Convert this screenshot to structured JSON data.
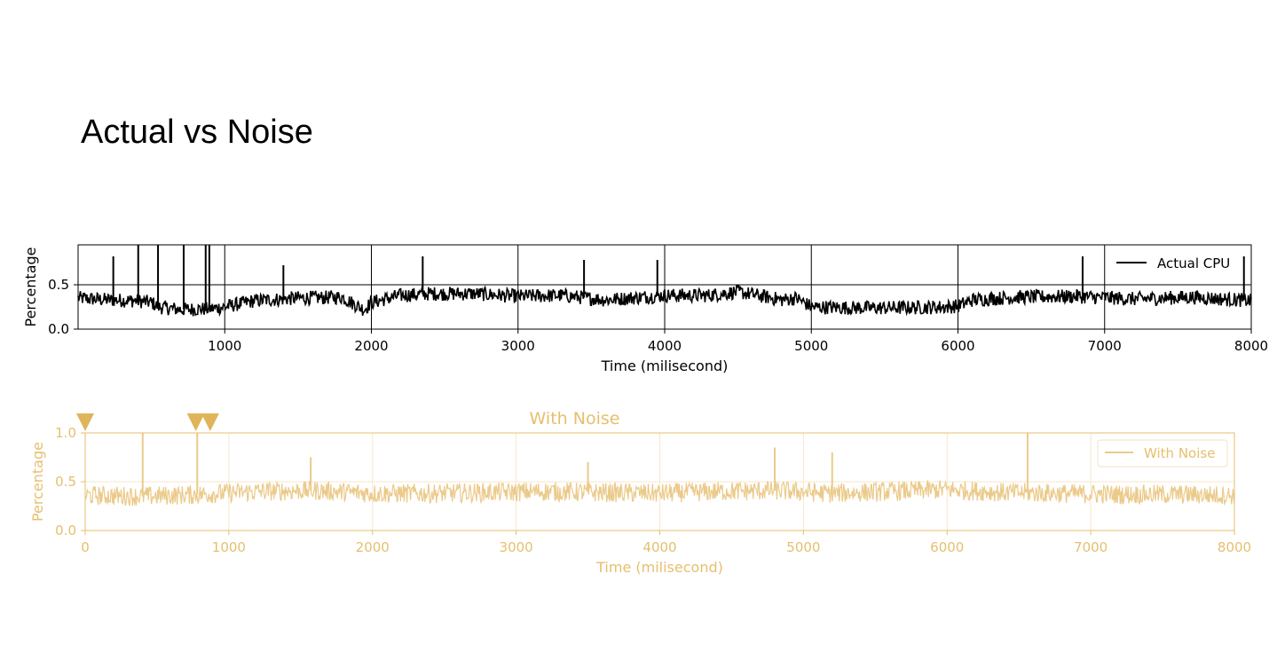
{
  "slide": {
    "title": "Actual vs Noise"
  },
  "chart_data": [
    {
      "type": "line",
      "title": "",
      "xlabel": "Time (milisecond)",
      "ylabel": "Percentage",
      "xlim": [
        0,
        8000
      ],
      "ylim": [
        0.0,
        0.95
      ],
      "x_ticks": [
        1000,
        2000,
        3000,
        4000,
        5000,
        6000,
        7000,
        8000
      ],
      "y_ticks": [
        0.0,
        0.5
      ],
      "grid": true,
      "legend_position": "top-right",
      "color": "#000000",
      "series": [
        {
          "name": "Actual CPU",
          "x": [
            0,
            200,
            400,
            500,
            550,
            700,
            900,
            1000,
            1200,
            1500,
            1800,
            1950,
            2000,
            2200,
            2400,
            2700,
            3000,
            3300,
            3600,
            4000,
            4300,
            4500,
            4800,
            4900,
            5000,
            5300,
            5600,
            5900,
            6000,
            6100,
            6400,
            6800,
            7200,
            7600,
            8000
          ],
          "y": [
            0.35,
            0.33,
            0.32,
            0.3,
            0.25,
            0.22,
            0.23,
            0.25,
            0.32,
            0.35,
            0.36,
            0.22,
            0.3,
            0.38,
            0.4,
            0.4,
            0.37,
            0.38,
            0.33,
            0.38,
            0.38,
            0.42,
            0.33,
            0.35,
            0.25,
            0.24,
            0.24,
            0.25,
            0.26,
            0.33,
            0.36,
            0.37,
            0.34,
            0.36,
            0.32
          ],
          "spikes": [
            {
              "x": 240,
              "y": 0.82
            },
            {
              "x": 410,
              "y": 0.95
            },
            {
              "x": 545,
              "y": 0.95
            },
            {
              "x": 720,
              "y": 0.95
            },
            {
              "x": 870,
              "y": 0.95
            },
            {
              "x": 895,
              "y": 0.95
            },
            {
              "x": 1400,
              "y": 0.72
            },
            {
              "x": 2350,
              "y": 0.82
            },
            {
              "x": 3450,
              "y": 0.78
            },
            {
              "x": 3950,
              "y": 0.78
            },
            {
              "x": 6850,
              "y": 0.82
            },
            {
              "x": 7950,
              "y": 0.82
            }
          ],
          "noise_amplitude": 0.08
        }
      ]
    },
    {
      "type": "line",
      "title": "With Noise",
      "xlabel": "Time (milisecond)",
      "ylabel": "Percentage",
      "xlim": [
        0,
        8000
      ],
      "ylim": [
        0.0,
        1.0
      ],
      "x_ticks": [
        0,
        1000,
        2000,
        3000,
        4000,
        5000,
        6000,
        7000,
        8000
      ],
      "y_ticks": [
        0.0,
        0.5,
        1.0
      ],
      "grid": true,
      "legend_position": "top-right",
      "color": "#ebca8a",
      "axis_color": "#e6bf6e",
      "marker_color": "#dfb45a",
      "series": [
        {
          "name": "With Noise",
          "x": [
            0,
            400,
            800,
            1200,
            1600,
            2000,
            2400,
            2800,
            3200,
            3600,
            4000,
            4400,
            4800,
            5200,
            5600,
            6000,
            6400,
            6800,
            7200,
            7600,
            8000
          ],
          "y": [
            0.36,
            0.35,
            0.37,
            0.4,
            0.41,
            0.38,
            0.38,
            0.39,
            0.4,
            0.39,
            0.38,
            0.4,
            0.41,
            0.38,
            0.4,
            0.42,
            0.39,
            0.38,
            0.37,
            0.37,
            0.36
          ],
          "spikes": [
            {
              "x": 400,
              "y": 1.0
            },
            {
              "x": 780,
              "y": 1.0
            },
            {
              "x": 1570,
              "y": 0.75
            },
            {
              "x": 3500,
              "y": 0.7
            },
            {
              "x": 4800,
              "y": 0.85
            },
            {
              "x": 5200,
              "y": 0.8
            },
            {
              "x": 6560,
              "y": 1.0
            }
          ],
          "noise_amplitude": 0.1
        }
      ],
      "outlier_markers_x": [
        0,
        770,
        870
      ]
    }
  ]
}
